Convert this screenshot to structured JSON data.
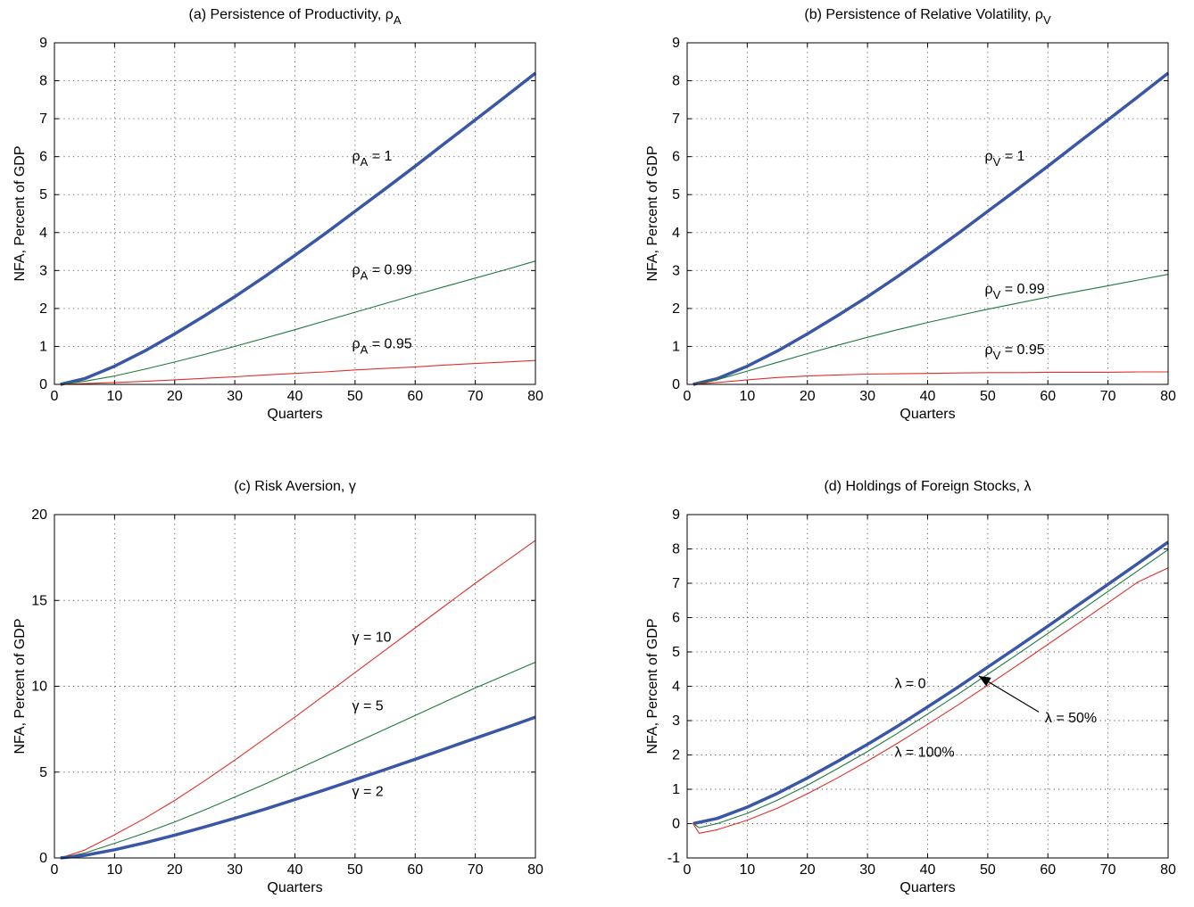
{
  "chart_data": [
    {
      "type": "line",
      "title": "(a) Persistence of Productivity, ρ",
      "title_sub": "A",
      "xlabel": "Quarters",
      "ylabel": "NFA, Percent of GDP",
      "xlim": [
        0,
        80
      ],
      "ylim": [
        0,
        9
      ],
      "xticks": [
        0,
        10,
        20,
        30,
        40,
        50,
        60,
        70,
        80
      ],
      "yticks": [
        0,
        1,
        2,
        3,
        4,
        5,
        6,
        7,
        8,
        9
      ],
      "grid": true,
      "series": [
        {
          "name": "ρA = 1",
          "color": "#3a56a6",
          "width": 3.5,
          "x": [
            1,
            5,
            10,
            15,
            20,
            25,
            30,
            35,
            40,
            45,
            50,
            55,
            60,
            65,
            70,
            75,
            80
          ],
          "y": [
            0.0,
            0.15,
            0.48,
            0.88,
            1.33,
            1.81,
            2.31,
            2.84,
            3.4,
            3.97,
            4.56,
            5.15,
            5.75,
            6.36,
            6.97,
            7.58,
            8.2
          ]
        },
        {
          "name": "ρA = 0.99",
          "color": "#1e7a3a",
          "width": 1.1,
          "x": [
            1,
            5,
            10,
            15,
            20,
            25,
            30,
            35,
            40,
            45,
            50,
            55,
            60,
            65,
            70,
            75,
            80
          ],
          "y": [
            0.0,
            0.08,
            0.22,
            0.4,
            0.59,
            0.79,
            1.0,
            1.22,
            1.44,
            1.67,
            1.9,
            2.13,
            2.36,
            2.58,
            2.8,
            3.02,
            3.25
          ]
        },
        {
          "name": "ρA = 0.95",
          "color": "#e0302a",
          "width": 1.1,
          "x": [
            1,
            5,
            10,
            15,
            20,
            25,
            30,
            35,
            40,
            45,
            50,
            55,
            60,
            65,
            70,
            75,
            80
          ],
          "y": [
            0.0,
            0.02,
            0.05,
            0.08,
            0.12,
            0.16,
            0.2,
            0.25,
            0.29,
            0.33,
            0.38,
            0.42,
            0.46,
            0.51,
            0.55,
            0.59,
            0.63
          ]
        }
      ],
      "annotations": [
        {
          "id": "a1",
          "base": "ρ",
          "sub": "A",
          "rest": " = 1",
          "x": 49.5,
          "y": 5.9
        },
        {
          "id": "a2",
          "base": "ρ",
          "sub": "A",
          "rest": " = 0.99",
          "x": 49.5,
          "y": 2.9
        },
        {
          "id": "a3",
          "base": "ρ",
          "sub": "A",
          "rest": " = 0.95",
          "x": 49.5,
          "y": 0.95
        }
      ]
    },
    {
      "type": "line",
      "title": "(b) Persistence of Relative Volatility, ρ",
      "title_sub": "V",
      "xlabel": "Quarters",
      "ylabel": "NFA, Percent of GDP",
      "xlim": [
        0,
        80
      ],
      "ylim": [
        0,
        9
      ],
      "xticks": [
        0,
        10,
        20,
        30,
        40,
        50,
        60,
        70,
        80
      ],
      "yticks": [
        0,
        1,
        2,
        3,
        4,
        5,
        6,
        7,
        8,
        9
      ],
      "grid": true,
      "series": [
        {
          "name": "ρV = 1",
          "color": "#3a56a6",
          "width": 3.5,
          "x": [
            1,
            5,
            10,
            15,
            20,
            25,
            30,
            35,
            40,
            45,
            50,
            55,
            60,
            65,
            70,
            75,
            80
          ],
          "y": [
            0.0,
            0.15,
            0.48,
            0.88,
            1.33,
            1.81,
            2.31,
            2.84,
            3.4,
            3.97,
            4.56,
            5.15,
            5.75,
            6.36,
            6.97,
            7.58,
            8.2
          ]
        },
        {
          "name": "ρV = 0.99",
          "color": "#1e7a3a",
          "width": 1.1,
          "x": [
            1,
            5,
            10,
            15,
            20,
            25,
            30,
            35,
            40,
            45,
            50,
            55,
            60,
            65,
            70,
            75,
            80
          ],
          "y": [
            0.0,
            0.12,
            0.35,
            0.58,
            0.81,
            1.03,
            1.24,
            1.44,
            1.63,
            1.81,
            1.98,
            2.14,
            2.3,
            2.45,
            2.6,
            2.75,
            2.9
          ]
        },
        {
          "name": "ρV = 0.95",
          "color": "#e0302a",
          "width": 1.1,
          "x": [
            1,
            5,
            10,
            15,
            20,
            25,
            30,
            35,
            40,
            45,
            50,
            55,
            60,
            65,
            70,
            75,
            80
          ],
          "y": [
            0.0,
            0.05,
            0.12,
            0.18,
            0.22,
            0.25,
            0.27,
            0.28,
            0.29,
            0.3,
            0.31,
            0.31,
            0.32,
            0.32,
            0.32,
            0.33,
            0.33
          ]
        }
      ],
      "annotations": [
        {
          "id": "b1",
          "base": "ρ",
          "sub": "V",
          "rest": " = 1",
          "x": 49.5,
          "y": 5.9
        },
        {
          "id": "b2",
          "base": "ρ",
          "sub": "V",
          "rest": " = 0.99",
          "x": 49.5,
          "y": 2.4
        },
        {
          "id": "b3",
          "base": "ρ",
          "sub": "V",
          "rest": " = 0.95",
          "x": 49.5,
          "y": 0.8
        }
      ]
    },
    {
      "type": "line",
      "title": "(c) Risk Aversion, γ",
      "xlabel": "Quarters",
      "ylabel": "NFA, Percent of GDP",
      "xlim": [
        0,
        80
      ],
      "ylim": [
        0,
        20
      ],
      "xticks": [
        0,
        10,
        20,
        30,
        40,
        50,
        60,
        70,
        80
      ],
      "yticks": [
        0,
        5,
        10,
        15,
        20
      ],
      "grid": true,
      "series": [
        {
          "name": "γ = 10",
          "color": "#e0302a",
          "width": 1.1,
          "x": [
            1,
            5,
            10,
            15,
            20,
            25,
            30,
            35,
            40,
            45,
            50,
            55,
            60,
            65,
            70,
            75,
            80
          ],
          "y": [
            0.0,
            0.45,
            1.35,
            2.3,
            3.35,
            4.5,
            5.7,
            6.95,
            8.2,
            9.5,
            10.8,
            12.1,
            13.4,
            14.7,
            16.0,
            17.25,
            18.5
          ]
        },
        {
          "name": "γ = 5",
          "color": "#1e7a3a",
          "width": 1.1,
          "x": [
            1,
            5,
            10,
            15,
            20,
            25,
            30,
            35,
            40,
            45,
            50,
            55,
            60,
            65,
            70,
            75,
            80
          ],
          "y": [
            0.0,
            0.28,
            0.85,
            1.45,
            2.1,
            2.8,
            3.55,
            4.3,
            5.1,
            5.9,
            6.7,
            7.5,
            8.3,
            9.1,
            9.9,
            10.65,
            11.4
          ]
        },
        {
          "name": "γ = 2",
          "color": "#3a56a6",
          "width": 3.5,
          "x": [
            1,
            5,
            10,
            15,
            20,
            25,
            30,
            35,
            40,
            45,
            50,
            55,
            60,
            65,
            70,
            75,
            80
          ],
          "y": [
            0.0,
            0.15,
            0.48,
            0.88,
            1.33,
            1.81,
            2.31,
            2.84,
            3.4,
            3.97,
            4.56,
            5.15,
            5.75,
            6.36,
            6.97,
            7.58,
            8.2
          ]
        }
      ],
      "annotations": [
        {
          "id": "c1",
          "base": "γ = 10",
          "sub": "",
          "rest": "",
          "x": 49.5,
          "y": 12.6
        },
        {
          "id": "c2",
          "base": "γ = 5",
          "sub": "",
          "rest": "",
          "x": 49.5,
          "y": 8.6
        },
        {
          "id": "c3",
          "base": "γ = 2",
          "sub": "",
          "rest": "",
          "x": 49.5,
          "y": 3.6
        }
      ]
    },
    {
      "type": "line",
      "title": "(d) Holdings of Foreign Stocks, λ",
      "xlabel": "Quarters",
      "ylabel": "NFA, Percent of GDP",
      "xlim": [
        0,
        80
      ],
      "ylim": [
        -1,
        9
      ],
      "xticks": [
        0,
        10,
        20,
        30,
        40,
        50,
        60,
        70,
        80
      ],
      "yticks": [
        -1,
        0,
        1,
        2,
        3,
        4,
        5,
        6,
        7,
        8,
        9
      ],
      "grid": true,
      "series": [
        {
          "name": "λ = 0",
          "color": "#3a56a6",
          "width": 3.5,
          "x": [
            1,
            5,
            10,
            15,
            20,
            25,
            30,
            35,
            40,
            45,
            50,
            55,
            60,
            65,
            70,
            75,
            80
          ],
          "y": [
            0.0,
            0.15,
            0.48,
            0.88,
            1.33,
            1.81,
            2.31,
            2.84,
            3.4,
            3.97,
            4.56,
            5.15,
            5.75,
            6.36,
            6.97,
            7.58,
            8.2
          ]
        },
        {
          "name": "λ = 50%",
          "color": "#1e7a3a",
          "width": 1.1,
          "x": [
            1,
            2,
            5,
            10,
            15,
            20,
            25,
            30,
            35,
            40,
            45,
            50,
            55,
            60,
            65,
            70,
            75,
            80
          ],
          "y": [
            0.0,
            -0.12,
            0.0,
            0.3,
            0.68,
            1.12,
            1.6,
            2.1,
            2.63,
            3.19,
            3.76,
            4.35,
            4.94,
            5.54,
            6.15,
            6.76,
            7.37,
            7.98
          ]
        },
        {
          "name": "λ = 100%",
          "color": "#e0302a",
          "width": 1.1,
          "x": [
            1,
            2,
            5,
            10,
            15,
            20,
            25,
            30,
            35,
            40,
            45,
            50,
            55,
            60,
            65,
            70,
            75,
            80
          ],
          "y": [
            0.0,
            -0.28,
            -0.18,
            0.1,
            0.45,
            0.87,
            1.33,
            1.82,
            2.34,
            2.89,
            3.45,
            4.03,
            4.62,
            5.22,
            5.82,
            6.43,
            7.04,
            7.45
          ]
        }
      ],
      "annotations": [
        {
          "id": "d1",
          "base": "λ = 0",
          "sub": "",
          "rest": "",
          "x": 34.5,
          "y": 3.95
        },
        {
          "id": "d2",
          "base": "λ = 50%",
          "sub": "",
          "rest": "",
          "x": 59.5,
          "y": 2.95
        },
        {
          "id": "d3",
          "base": "λ = 100%",
          "sub": "",
          "rest": "",
          "x": 34.5,
          "y": 1.95
        }
      ],
      "arrow": {
        "from": [
          58.5,
          3.25
        ],
        "to": [
          48.5,
          4.3
        ]
      }
    }
  ]
}
